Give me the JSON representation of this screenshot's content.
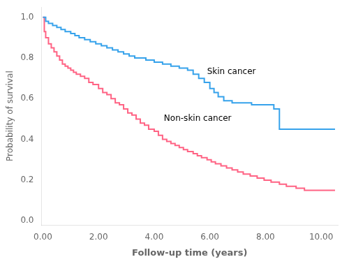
{
  "chart_data": {
    "type": "line",
    "xlabel": "Follow-up time (years)",
    "ylabel": "Probability of survival",
    "xlim": [
      -0.05,
      10.6
    ],
    "ylim": [
      -0.02,
      1.05
    ],
    "xticks": [
      {
        "value": 0.0,
        "label": "0.00"
      },
      {
        "value": 2.0,
        "label": "2.00"
      },
      {
        "value": 4.0,
        "label": "4.00"
      },
      {
        "value": 6.0,
        "label": "6.00"
      },
      {
        "value": 8.0,
        "label": "8.00"
      },
      {
        "value": 10.0,
        "label": "10.00"
      }
    ],
    "yticks": [
      {
        "value": 0.0,
        "label": "0.0"
      },
      0.2,
      0.4,
      0.6,
      0.8,
      {
        "value": 1.0,
        "label": "1.0"
      }
    ],
    "grid": false,
    "series": [
      {
        "x": [
          0.0,
          0.1,
          0.1,
          0.2,
          0.2,
          0.35,
          0.35,
          0.5,
          0.5,
          0.65,
          0.65,
          0.8,
          0.8,
          1.0,
          1.0,
          1.15,
          1.15,
          1.3,
          1.3,
          1.5,
          1.5,
          1.7,
          1.7,
          1.9,
          1.9,
          2.1,
          2.1,
          2.3,
          2.3,
          2.5,
          2.5,
          2.7,
          2.7,
          2.9,
          2.9,
          3.1,
          3.1,
          3.3,
          3.3,
          3.7,
          3.7,
          4.0,
          4.0,
          4.3,
          4.3,
          4.6,
          4.6,
          4.9,
          4.9,
          5.2,
          5.2,
          5.4,
          5.4,
          5.6,
          5.6,
          5.8,
          5.8,
          6.0,
          6.0,
          6.15,
          6.15,
          6.3,
          6.3,
          6.5,
          6.5,
          6.8,
          6.8,
          7.5,
          7.5,
          8.3,
          8.3,
          8.5,
          8.5,
          10.5
        ],
        "values": [
          1.0,
          1.0,
          0.98,
          0.98,
          0.97,
          0.97,
          0.96,
          0.96,
          0.95,
          0.95,
          0.94,
          0.94,
          0.93,
          0.93,
          0.92,
          0.92,
          0.91,
          0.91,
          0.9,
          0.9,
          0.89,
          0.89,
          0.88,
          0.88,
          0.87,
          0.87,
          0.86,
          0.86,
          0.85,
          0.85,
          0.84,
          0.84,
          0.83,
          0.83,
          0.82,
          0.82,
          0.81,
          0.81,
          0.8,
          0.8,
          0.79,
          0.79,
          0.78,
          0.78,
          0.77,
          0.77,
          0.76,
          0.76,
          0.75,
          0.75,
          0.74,
          0.74,
          0.72,
          0.72,
          0.7,
          0.7,
          0.68,
          0.68,
          0.65,
          0.65,
          0.63,
          0.63,
          0.61,
          0.61,
          0.59,
          0.59,
          0.58,
          0.58,
          0.57,
          0.57,
          0.55,
          0.55,
          0.45,
          0.45
        ]
      },
      {
        "x": [
          0.0,
          0.05,
          0.05,
          0.1,
          0.1,
          0.2,
          0.2,
          0.3,
          0.3,
          0.4,
          0.4,
          0.5,
          0.5,
          0.6,
          0.6,
          0.7,
          0.7,
          0.8,
          0.8,
          0.9,
          0.9,
          1.0,
          1.0,
          1.1,
          1.1,
          1.2,
          1.2,
          1.35,
          1.35,
          1.5,
          1.5,
          1.65,
          1.65,
          1.8,
          1.8,
          2.0,
          2.0,
          2.15,
          2.15,
          2.3,
          2.3,
          2.45,
          2.45,
          2.6,
          2.6,
          2.75,
          2.75,
          2.9,
          2.9,
          3.05,
          3.05,
          3.2,
          3.2,
          3.35,
          3.35,
          3.5,
          3.5,
          3.65,
          3.65,
          3.8,
          3.8,
          4.0,
          4.0,
          4.15,
          4.15,
          4.3,
          4.3,
          4.45,
          4.45,
          4.6,
          4.6,
          4.75,
          4.75,
          4.9,
          4.9,
          5.05,
          5.05,
          5.2,
          5.2,
          5.4,
          5.4,
          5.55,
          5.55,
          5.7,
          5.7,
          5.9,
          5.9,
          6.05,
          6.05,
          6.2,
          6.2,
          6.4,
          6.4,
          6.6,
          6.6,
          6.8,
          6.8,
          7.0,
          7.0,
          7.2,
          7.2,
          7.45,
          7.45,
          7.7,
          7.7,
          7.95,
          7.95,
          8.2,
          8.2,
          8.5,
          8.5,
          8.75,
          8.75,
          9.1,
          9.1,
          9.4,
          9.4,
          10.5
        ],
        "values": [
          1.0,
          1.0,
          0.93,
          0.93,
          0.9,
          0.9,
          0.87,
          0.87,
          0.85,
          0.85,
          0.83,
          0.83,
          0.81,
          0.81,
          0.79,
          0.79,
          0.77,
          0.77,
          0.76,
          0.76,
          0.75,
          0.75,
          0.74,
          0.74,
          0.73,
          0.73,
          0.72,
          0.72,
          0.71,
          0.71,
          0.7,
          0.7,
          0.68,
          0.68,
          0.67,
          0.67,
          0.65,
          0.65,
          0.63,
          0.63,
          0.62,
          0.62,
          0.6,
          0.6,
          0.58,
          0.58,
          0.57,
          0.57,
          0.55,
          0.55,
          0.53,
          0.53,
          0.52,
          0.52,
          0.5,
          0.5,
          0.48,
          0.48,
          0.47,
          0.47,
          0.45,
          0.45,
          0.44,
          0.44,
          0.42,
          0.42,
          0.4,
          0.4,
          0.39,
          0.39,
          0.38,
          0.38,
          0.37,
          0.37,
          0.36,
          0.36,
          0.35,
          0.35,
          0.34,
          0.34,
          0.33,
          0.33,
          0.32,
          0.32,
          0.31,
          0.31,
          0.3,
          0.3,
          0.29,
          0.29,
          0.28,
          0.28,
          0.27,
          0.27,
          0.26,
          0.26,
          0.25,
          0.25,
          0.24,
          0.24,
          0.23,
          0.23,
          0.22,
          0.22,
          0.21,
          0.21,
          0.2,
          0.2,
          0.19,
          0.19,
          0.18,
          0.18,
          0.17,
          0.17,
          0.16,
          0.16,
          0.15,
          0.15
        ]
      }
    ],
    "annotations": [
      {
        "text": "Skin cancer",
        "x": 5.9,
        "y": 0.72
      },
      {
        "text": "Non-skin cancer",
        "x": 4.35,
        "y": 0.49
      }
    ]
  }
}
